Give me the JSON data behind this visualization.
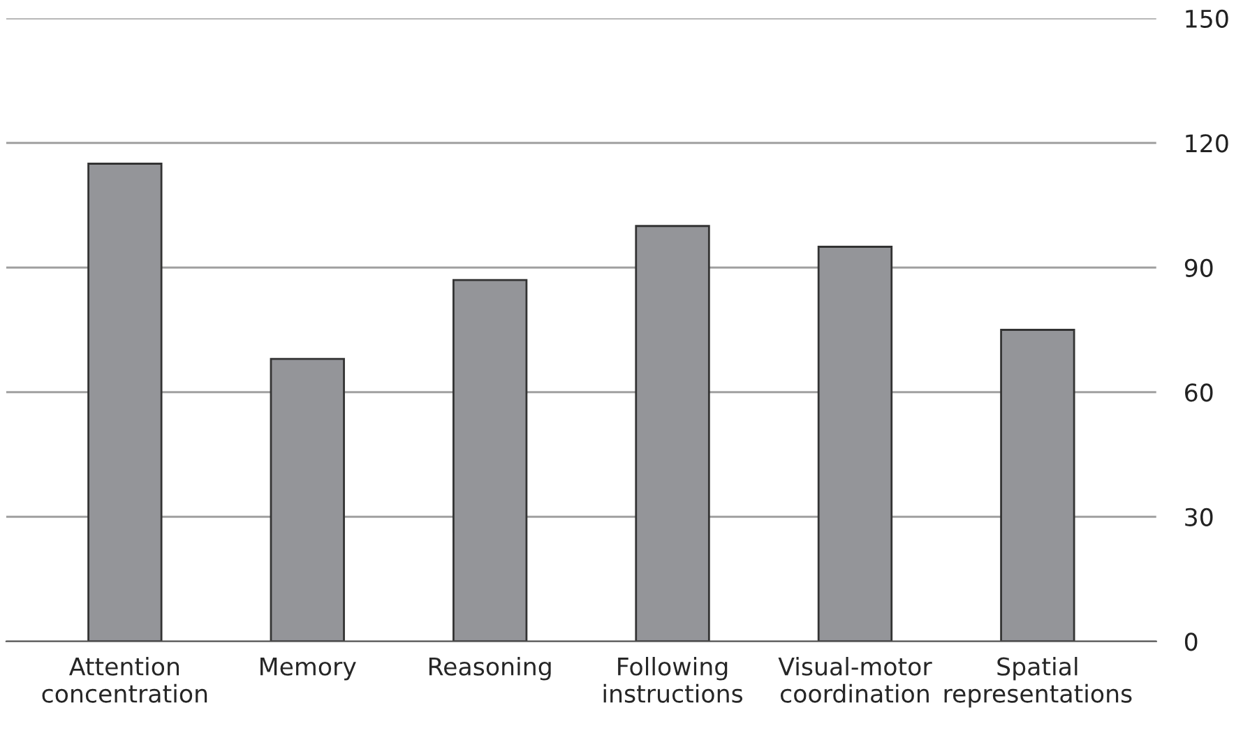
{
  "chart_data": {
    "type": "bar",
    "categories": [
      "Attention\nconcentration",
      "Memory",
      "Reasoning",
      "Following\ninstructions",
      "Visual-motor\ncoordination",
      "Spatial\nrepresentations"
    ],
    "values": [
      115,
      68,
      87,
      100,
      95,
      75
    ],
    "color": "#949599",
    "ylim": [
      0,
      150
    ],
    "yticks": [
      0,
      30,
      60,
      90,
      120,
      150
    ],
    "grid": "y"
  }
}
